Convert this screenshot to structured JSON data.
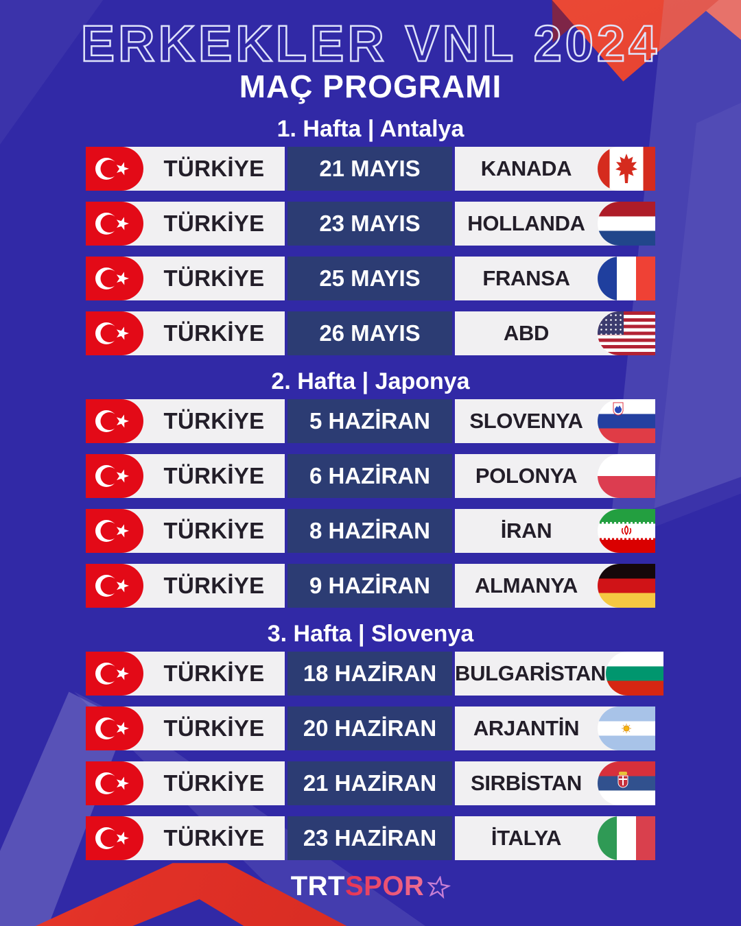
{
  "header": {
    "title_line1": "ERKEKLER VNL 2024",
    "title_line2": "MAÇ PROGRAMI"
  },
  "weeks": [
    {
      "heading": "1. Hafta | Antalya",
      "matches": [
        {
          "home": "TÜRKİYE",
          "date": "21 MAYIS",
          "away": "KANADA",
          "away_flag": "canada"
        },
        {
          "home": "TÜRKİYE",
          "date": "23 MAYIS",
          "away": "HOLLANDA",
          "away_flag": "netherlands"
        },
        {
          "home": "TÜRKİYE",
          "date": "25 MAYIS",
          "away": "FRANSA",
          "away_flag": "france"
        },
        {
          "home": "TÜRKİYE",
          "date": "26 MAYIS",
          "away": "ABD",
          "away_flag": "usa"
        }
      ]
    },
    {
      "heading": "2. Hafta | Japonya",
      "matches": [
        {
          "home": "TÜRKİYE",
          "date": "5 HAZİRAN",
          "away": "SLOVENYA",
          "away_flag": "slovenia"
        },
        {
          "home": "TÜRKİYE",
          "date": "6 HAZİRAN",
          "away": "POLONYA",
          "away_flag": "poland"
        },
        {
          "home": "TÜRKİYE",
          "date": "8 HAZİRAN",
          "away": "İRAN",
          "away_flag": "iran"
        },
        {
          "home": "TÜRKİYE",
          "date": "9 HAZİRAN",
          "away": "ALMANYA",
          "away_flag": "germany"
        }
      ]
    },
    {
      "heading": "3. Hafta | Slovenya",
      "matches": [
        {
          "home": "TÜRKİYE",
          "date": "18 HAZİRAN",
          "away": "BULGARİSTAN",
          "away_flag": "bulgaria"
        },
        {
          "home": "TÜRKİYE",
          "date": "20 HAZİRAN",
          "away": "ARJANTİN",
          "away_flag": "argentina"
        },
        {
          "home": "TÜRKİYE",
          "date": "21 HAZİRAN",
          "away": "SIRBİSTAN",
          "away_flag": "serbia"
        },
        {
          "home": "TÜRKİYE",
          "date": "23 HAZİRAN",
          "away": "İTALYA",
          "away_flag": "italy"
        }
      ]
    }
  ],
  "footer": {
    "logo_trt": "TRT",
    "logo_spor": "SPOR"
  },
  "icons": {
    "turkiye_flag": "crescent-and-star",
    "trtspor_star": "outlined-star"
  },
  "colors": {
    "background": "#3129a6",
    "date_box": "#2c3c73",
    "row_box": "#f1f0f2",
    "accent_red": "#e23127",
    "turkey_red": "#e30a17",
    "title_outline": "#dfe3fa",
    "logo_spor": "#e73350"
  }
}
